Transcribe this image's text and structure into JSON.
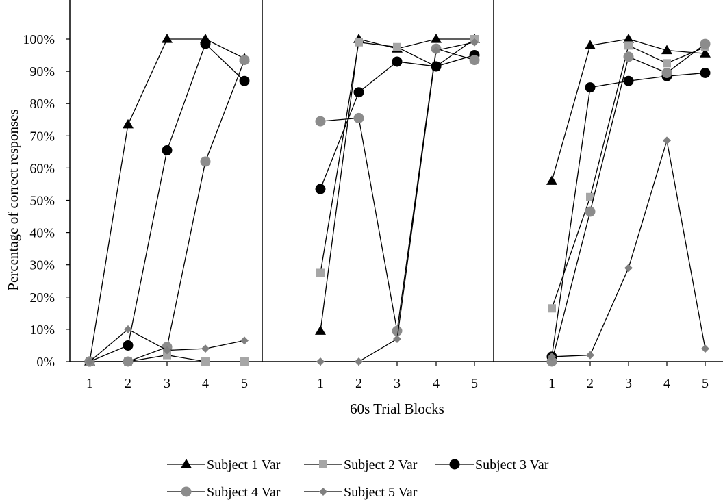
{
  "chart_data": {
    "type": "line",
    "title": "",
    "xlabel": "60s Trial Blocks",
    "ylabel": "Percentage of correct responses",
    "ylim": [
      0,
      1
    ],
    "y_ticks": [
      "0%",
      "10%",
      "20%",
      "30%",
      "40%",
      "50%",
      "60%",
      "70%",
      "80%",
      "90%",
      "100%"
    ],
    "categories": [
      "1",
      "2",
      "3",
      "4",
      "5"
    ],
    "grid": false,
    "legend_position": "bottom",
    "panels": [
      {
        "series": [
          {
            "name": "Subject 1 Var",
            "values": [
              0.0,
              0.735,
              1.0,
              1.0,
              0.94
            ]
          },
          {
            "name": "Subject 2 Var",
            "values": [
              0.0,
              0.0,
              0.02,
              0.0,
              0.0
            ]
          },
          {
            "name": "Subject 3 Var",
            "values": [
              0.0,
              0.05,
              0.655,
              0.985,
              0.87
            ]
          },
          {
            "name": "Subject 4 Var",
            "values": [
              0.0,
              0.0,
              0.045,
              0.62,
              0.935
            ]
          },
          {
            "name": "Subject 5 Var",
            "values": [
              0.0,
              0.1,
              0.035,
              0.04,
              0.065
            ]
          }
        ]
      },
      {
        "series": [
          {
            "name": "Subject 1 Var",
            "values": [
              0.095,
              1.0,
              0.97,
              1.0,
              1.0
            ]
          },
          {
            "name": "Subject 2 Var",
            "values": [
              0.275,
              0.99,
              0.975,
              0.915,
              1.0
            ]
          },
          {
            "name": "Subject 3 Var",
            "values": [
              0.535,
              0.835,
              0.93,
              0.915,
              0.95
            ]
          },
          {
            "name": "Subject 4 Var",
            "values": [
              0.745,
              0.755,
              0.095,
              0.97,
              0.935
            ]
          },
          {
            "name": "Subject 5 Var",
            "values": [
              0.0,
              0.0,
              0.07,
              0.965,
              0.99
            ]
          }
        ]
      },
      {
        "series": [
          {
            "name": "Subject 1 Var",
            "values": [
              0.56,
              0.98,
              1.0,
              0.965,
              0.955
            ]
          },
          {
            "name": "Subject 2 Var",
            "values": [
              0.165,
              0.51,
              0.98,
              0.925,
              0.975
            ]
          },
          {
            "name": "Subject 3 Var",
            "values": [
              0.015,
              0.85,
              0.87,
              0.885,
              0.895
            ]
          },
          {
            "name": "Subject 4 Var",
            "values": [
              0.0,
              0.465,
              0.945,
              0.895,
              0.985
            ]
          },
          {
            "name": "Subject 5 Var",
            "values": [
              0.015,
              0.02,
              0.29,
              0.685,
              0.04
            ]
          }
        ]
      }
    ],
    "styles": {
      "Subject 1 Var": {
        "color": "#000000",
        "marker": "triangle"
      },
      "Subject 2 Var": {
        "color": "#a6a6a6",
        "marker": "square"
      },
      "Subject 3 Var": {
        "color": "#000000",
        "marker": "circle"
      },
      "Subject 4 Var": {
        "color": "#8c8c8c",
        "marker": "circle"
      },
      "Subject 5 Var": {
        "color": "#808080",
        "marker": "diamond"
      }
    },
    "line_color": "#000000"
  }
}
